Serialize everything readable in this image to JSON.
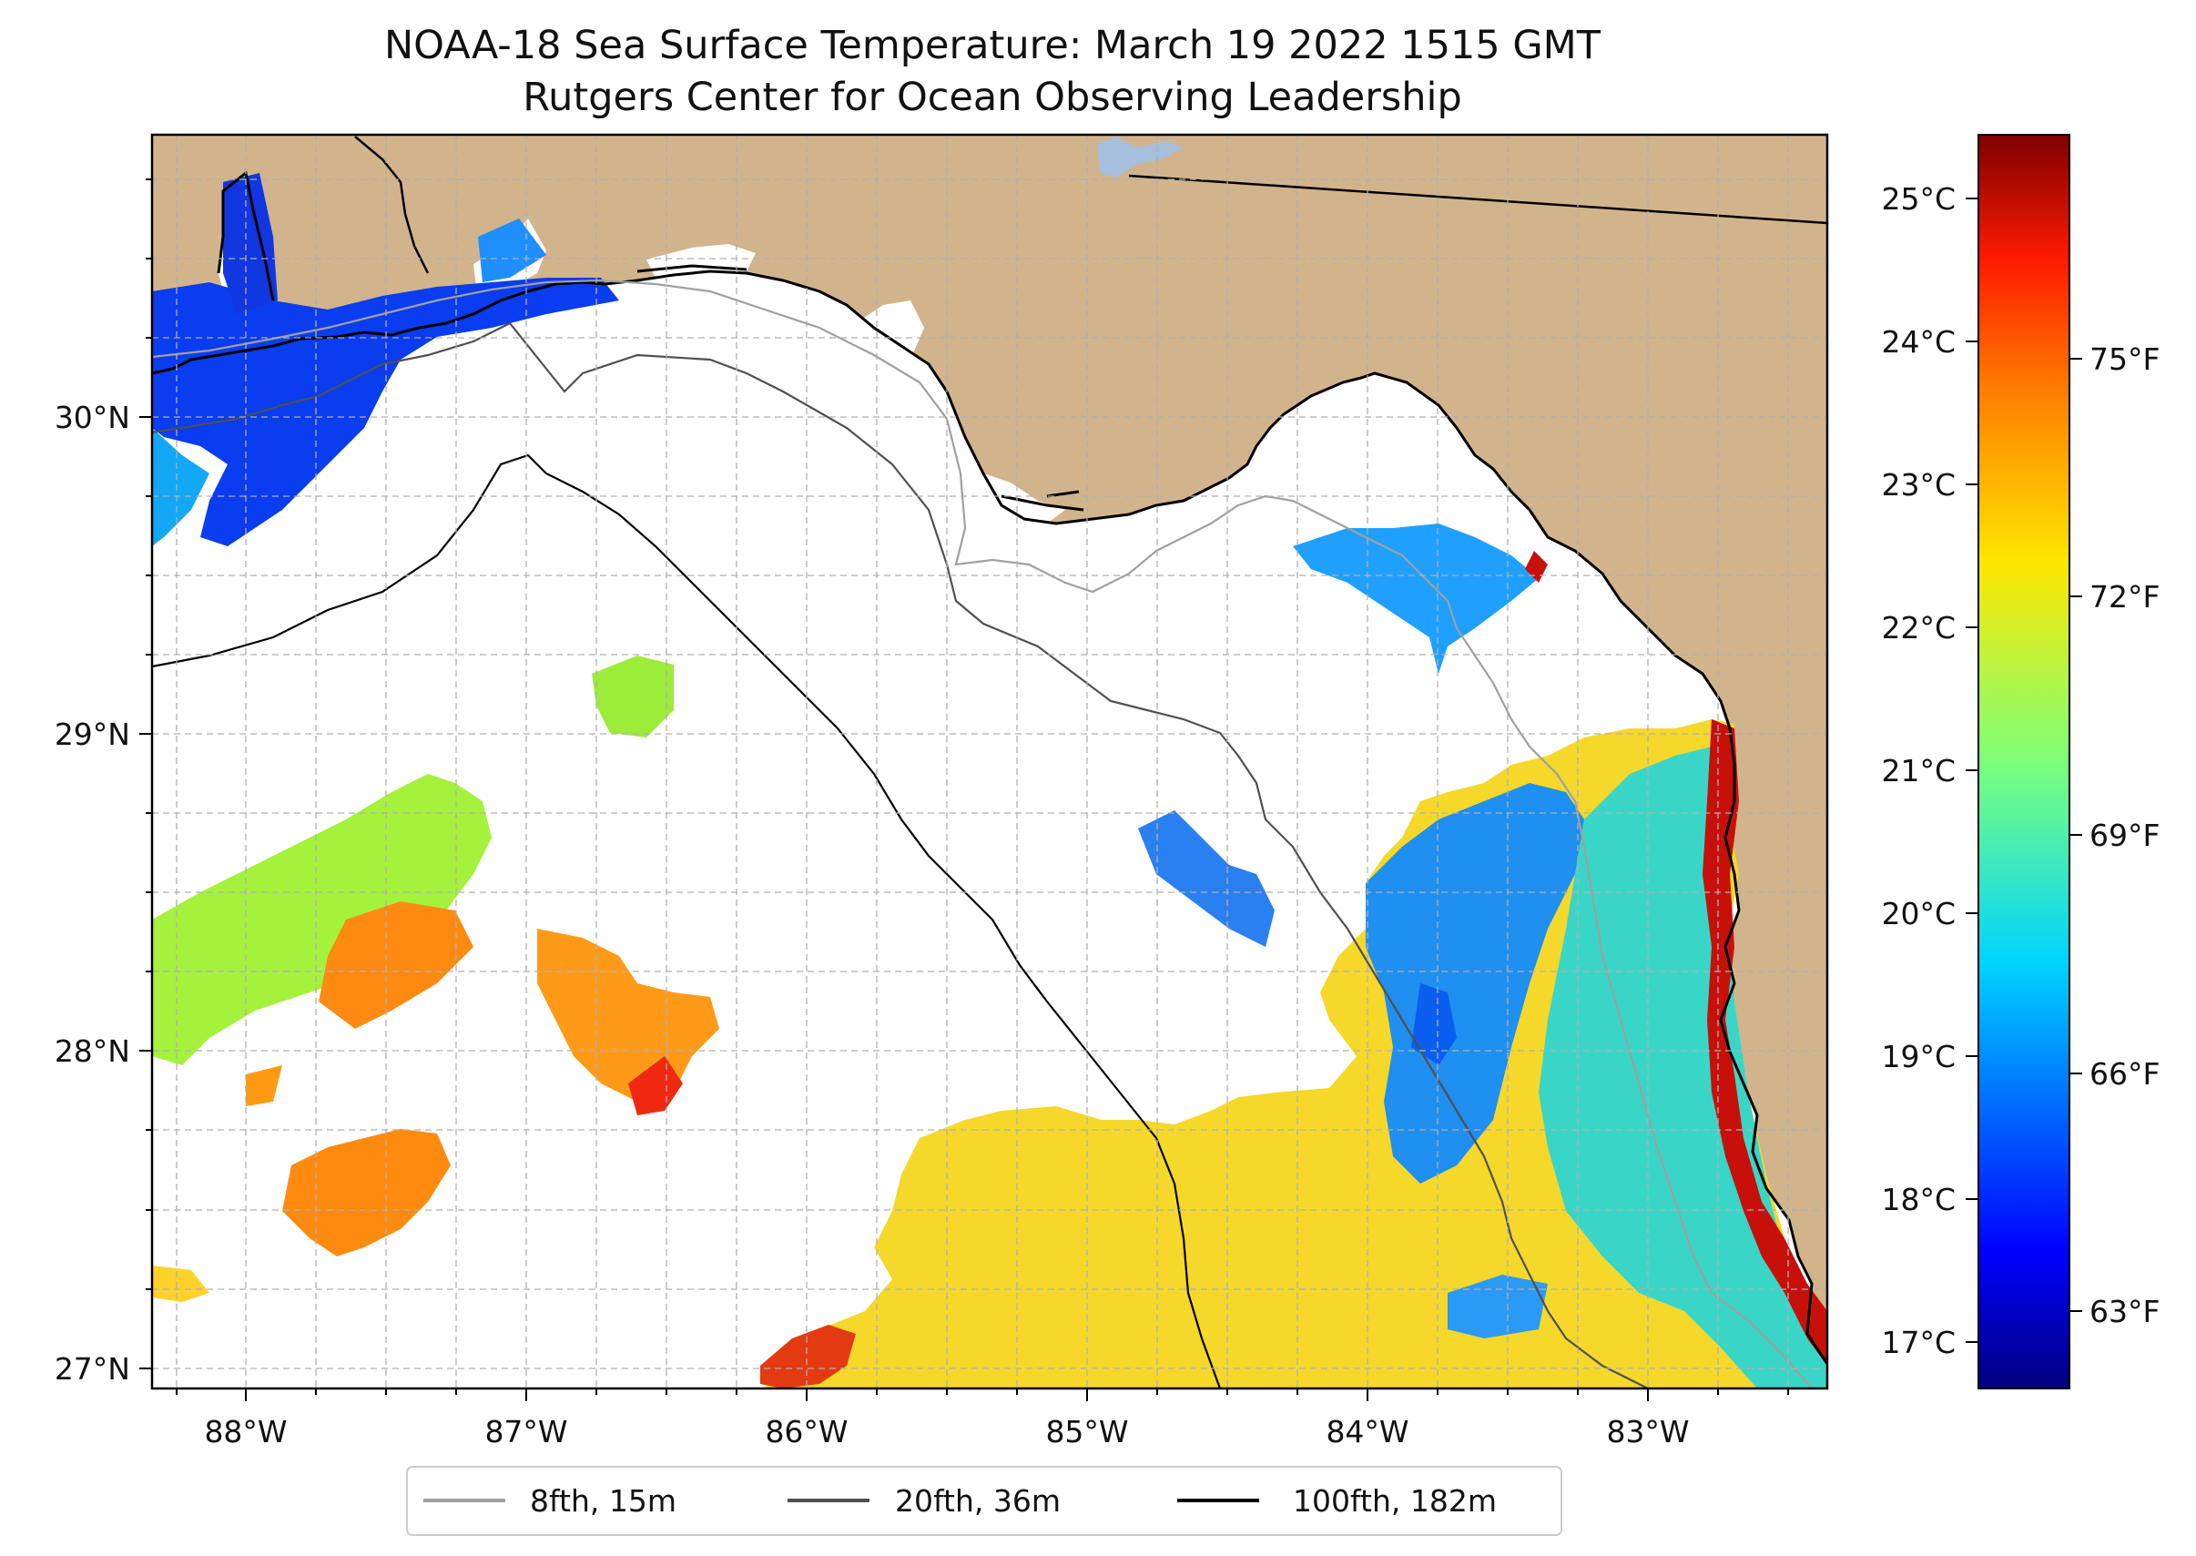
{
  "title": {
    "line1": "NOAA-18 Sea Surface Temperature: March 19 2022 1515 GMT",
    "line2": "Rutgers Center for Ocean Observing Leadership"
  },
  "map": {
    "lon_range": [
      -88.33,
      -82.38
    ],
    "lat_range": [
      26.94,
      30.86
    ],
    "lon_ticks": [
      {
        "value": -88,
        "label": "88°W"
      },
      {
        "value": -87,
        "label": "87°W"
      },
      {
        "value": -86,
        "label": "86°W"
      },
      {
        "value": -85,
        "label": "85°W"
      },
      {
        "value": -84,
        "label": "84°W"
      },
      {
        "value": -83,
        "label": "83°W"
      }
    ],
    "lat_ticks": [
      {
        "value": 27,
        "label": "27°N"
      },
      {
        "value": 28,
        "label": "28°N"
      },
      {
        "value": 29,
        "label": "29°N"
      },
      {
        "value": 30,
        "label": "30°N"
      }
    ],
    "colors": {
      "land": "#d2b48c",
      "lake": "#a5bfdd",
      "coastline": "#000000",
      "grid": "#b0b0b0"
    }
  },
  "legend": {
    "items": [
      {
        "label": "8fth, 15m",
        "color": "#a0a0a0"
      },
      {
        "label": "20fth, 36m",
        "color": "#505050"
      },
      {
        "label": "100fth, 182m",
        "color": "#000000"
      }
    ]
  },
  "colorbar": {
    "colormap": "jet",
    "celsius_range": [
      16.7,
      25.45
    ],
    "celsius_ticks": [
      "17°C",
      "18°C",
      "19°C",
      "20°C",
      "21°C",
      "22°C",
      "23°C",
      "24°C",
      "25°C"
    ],
    "fahrenheit_ticks": [
      "63°F",
      "66°F",
      "69°F",
      "72°F",
      "75°F"
    ]
  }
}
